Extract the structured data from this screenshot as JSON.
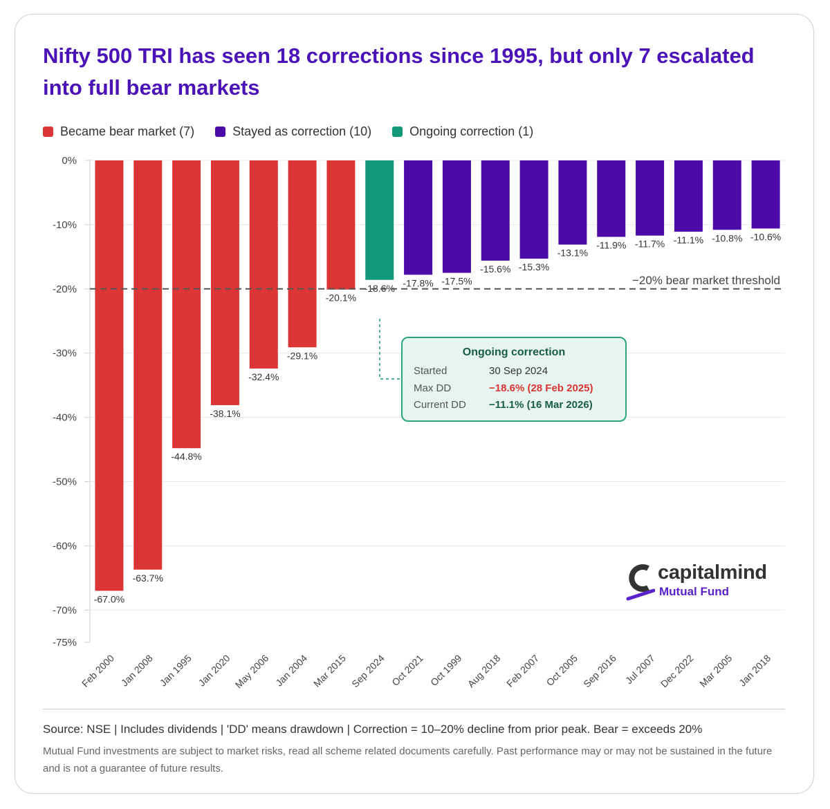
{
  "title": "Nifty 500 TRI has seen 18 corrections since 1995, but only 7 escalated into full bear markets",
  "legend": [
    {
      "label": "Became bear market (7)",
      "color": "#dc3535"
    },
    {
      "label": "Stayed as correction (10)",
      "color": "#4c0aa8"
    },
    {
      "label": "Ongoing correction (1)",
      "color": "#12997a"
    }
  ],
  "chart_data": {
    "type": "bar",
    "categories": [
      "Feb 2000",
      "Jan 2008",
      "Jan 1995",
      "Jan 2020",
      "May 2006",
      "Jan 2004",
      "Mar 2015",
      "Sep 2024",
      "Oct 2021",
      "Oct 1999",
      "Aug 2018",
      "Feb 2007",
      "Oct 2005",
      "Sep 2016",
      "Jul 2007",
      "Dec 2022",
      "Mar 2005",
      "Jan 2018"
    ],
    "values": [
      -67.0,
      -63.7,
      -44.8,
      -38.1,
      -32.4,
      -29.1,
      -20.1,
      -18.6,
      -17.8,
      -17.5,
      -15.6,
      -15.3,
      -13.1,
      -11.9,
      -11.7,
      -11.1,
      -10.8,
      -10.6
    ],
    "labels": [
      "-67.0%",
      "-63.7%",
      "-44.8%",
      "-38.1%",
      "-32.4%",
      "-29.1%",
      "-20.1%",
      "-18.6%",
      "-17.8%",
      "-17.5%",
      "-15.6%",
      "-15.3%",
      "-13.1%",
      "-11.9%",
      "-11.7%",
      "-11.1%",
      "-10.8%",
      "-10.6%"
    ],
    "groups": [
      "bear",
      "bear",
      "bear",
      "bear",
      "bear",
      "bear",
      "bear",
      "ongoing",
      "correction",
      "correction",
      "correction",
      "correction",
      "correction",
      "correction",
      "correction",
      "correction",
      "correction",
      "correction"
    ],
    "colors": {
      "bear": "#dc3535",
      "correction": "#4c0aa8",
      "ongoing": "#12997a"
    },
    "y_ticks": [
      0,
      -10,
      -20,
      -30,
      -40,
      -50,
      -60,
      -70,
      -75
    ],
    "y_tick_labels": [
      "0%",
      "-10%",
      "-20%",
      "-30%",
      "-40%",
      "-50%",
      "-60%",
      "-70%",
      "-75%"
    ],
    "ylim": [
      -75,
      0
    ],
    "threshold": {
      "value": -20,
      "label": "−20% bear market threshold"
    },
    "grid": true
  },
  "tooltip": {
    "title": "Ongoing correction",
    "rows": [
      {
        "label": "Started",
        "value": "30 Sep 2024",
        "color": "#333333"
      },
      {
        "label": "Max DD",
        "value": "−18.6%  (28 Feb 2025)",
        "color": "#d93434"
      },
      {
        "label": "Current DD",
        "value": "−11.1%  (16 Mar 2026)",
        "color": "#1a5b48"
      }
    ]
  },
  "logo": {
    "brand": "capitalmind",
    "sub": "Mutual Fund"
  },
  "footer": {
    "source": "Source: NSE | Includes dividends | 'DD' means drawdown | Correction = 10–20% decline from prior peak. Bear = exceeds 20%",
    "disclaimer": "Mutual Fund investments are subject to market risks, read all scheme related documents carefully. Past performance may or may not be sustained in the future and is not a guarantee of future results."
  }
}
